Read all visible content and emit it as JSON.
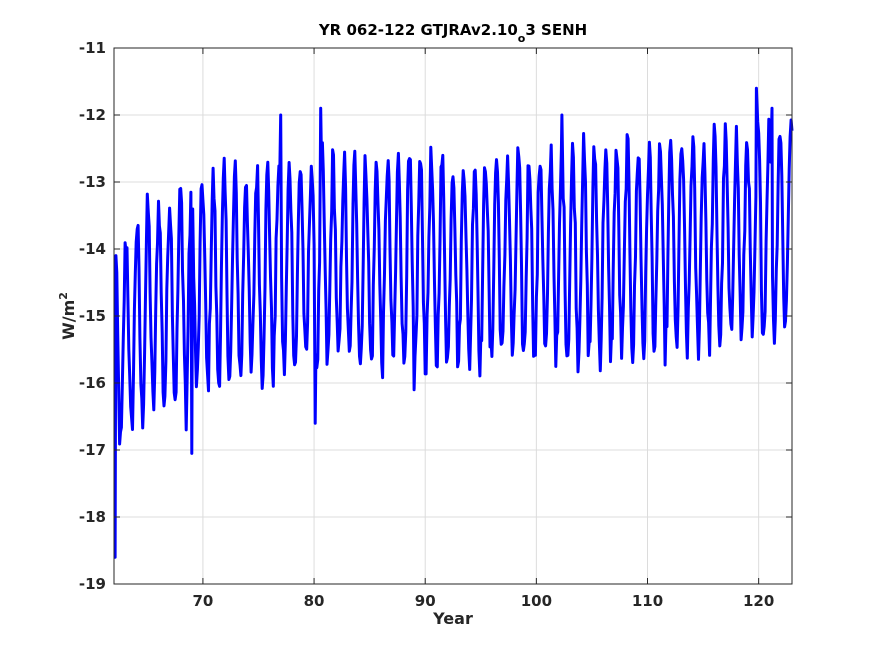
{
  "chart_data": {
    "type": "line",
    "title": {
      "prefix": "YR 062-122 GTJRAv2.10",
      "subscript": "o",
      "suffix": "3 SENH"
    },
    "xlabel": "Year",
    "ylabel": {
      "base": "W/m",
      "superscript": "2"
    },
    "xlim": [
      62,
      123
    ],
    "ylim": [
      -19,
      -11
    ],
    "x_ticks": [
      70,
      80,
      90,
      100,
      110,
      120
    ],
    "y_ticks": [
      -19,
      -18,
      -17,
      -16,
      -15,
      -14,
      -13,
      -12,
      -11
    ],
    "grid": true,
    "series": [
      {
        "color": "#0000ff",
        "x_start": 62.0,
        "x_end": 123.0,
        "start_value": -18.6,
        "seasonal_cycle_amplitude": 1.5,
        "trend": {
          "year": [
            62,
            65,
            70,
            80,
            90,
            100,
            110,
            120,
            123
          ],
          "mean": [
            -15.6,
            -14.9,
            -14.5,
            -14.2,
            -14.2,
            -14.1,
            -14.0,
            -13.8,
            -13.6
          ]
        },
        "extremes": {
          "max": [
            {
              "x": 80.6,
              "y": -11.9
            },
            {
              "x": 119.8,
              "y": -11.6
            },
            {
              "x": 121.2,
              "y": -11.9
            },
            {
              "x": 77.0,
              "y": -12.0
            },
            {
              "x": 102.3,
              "y": -12.0
            }
          ],
          "min": [
            {
              "x": 62.1,
              "y": -18.6
            },
            {
              "x": 69.0,
              "y": -17.05
            },
            {
              "x": 68.5,
              "y": -16.7
            },
            {
              "x": 80.1,
              "y": -16.6
            },
            {
              "x": 89.0,
              "y": -16.1
            }
          ]
        }
      }
    ]
  }
}
